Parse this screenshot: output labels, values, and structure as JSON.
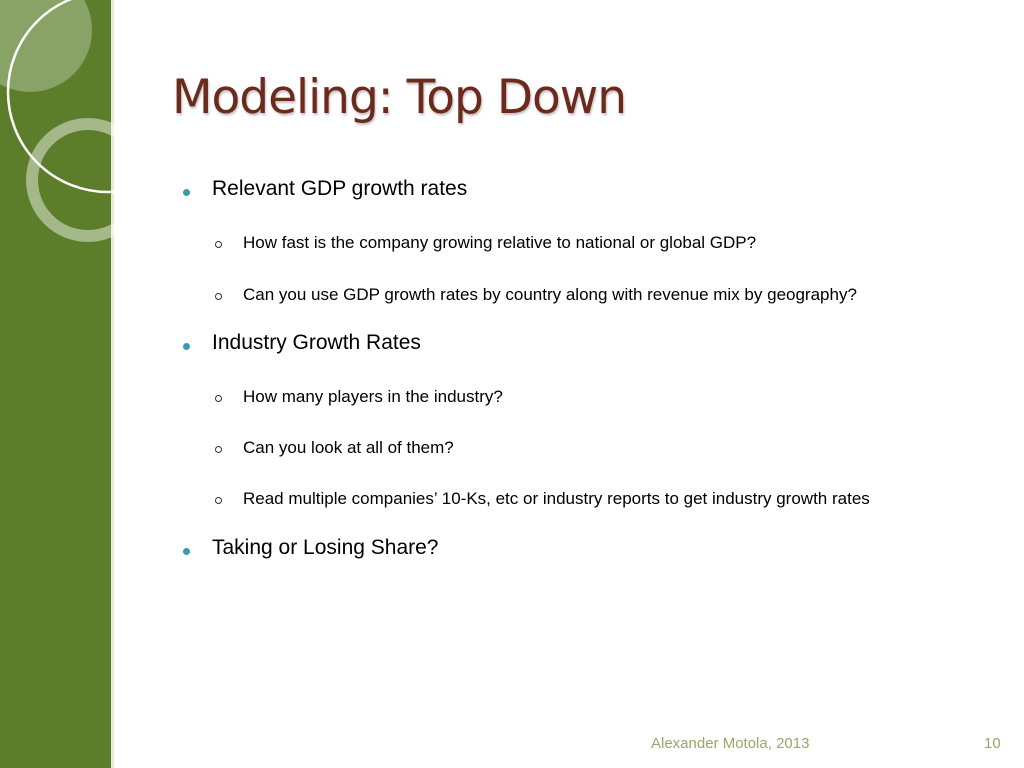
{
  "slide": {
    "title": "Modeling: Top Down",
    "items": [
      {
        "level": 1,
        "text": "Relevant GDP growth rates"
      },
      {
        "level": 2,
        "text": "How fast is the company growing relative to national or global GDP?"
      },
      {
        "level": 2,
        "text": "Can you use GDP growth rates by country along with revenue mix by geography?"
      },
      {
        "level": 1,
        "text": "Industry Growth Rates"
      },
      {
        "level": 2,
        "text": "How many players in the industry?"
      },
      {
        "level": 2,
        "text": "Can you look at all of them?"
      },
      {
        "level": 2,
        "text": "Read multiple companies’ 10-Ks, etc or industry reports to get industry growth rates"
      },
      {
        "level": 1,
        "text": "Taking or Losing Share?"
      }
    ],
    "footer_author": "Alexander Motola, 2013",
    "page_number": "10"
  },
  "colors": {
    "sidebar": "#5c7e2a",
    "title": "#6b2a1c",
    "bullet": "#3a9bb0",
    "footer": "#9aa66a"
  }
}
